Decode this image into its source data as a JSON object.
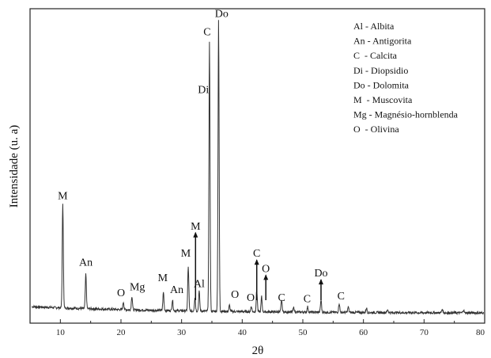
{
  "chart_data": {
    "type": "line",
    "title": "",
    "xlabel": "2θ",
    "ylabel": "Intensidade (u. a)",
    "xlim": [
      5,
      80
    ],
    "xticks": [
      10,
      20,
      30,
      40,
      50,
      60,
      70,
      80
    ],
    "y_ticks_shown": false,
    "grid": false,
    "legend": "top-right",
    "legend_entries": [
      "Al - Albita",
      "An - Antigorita",
      "C  - Calcita",
      "Di - Diopsidio",
      "Do - Dolomita",
      "M  - Muscovita",
      "Mg - Magnésio-hornblenda",
      "O  - Olivina"
    ],
    "peaks": [
      {
        "x": 10.4,
        "y": 0.34
      },
      {
        "x": 14.2,
        "y": 0.115
      },
      {
        "x": 20.4,
        "y": 0.025
      },
      {
        "x": 21.8,
        "y": 0.045
      },
      {
        "x": 27.0,
        "y": 0.06
      },
      {
        "x": 28.5,
        "y": 0.035
      },
      {
        "x": 31.1,
        "y": 0.145
      },
      {
        "x": 32.2,
        "y": 0.045
      },
      {
        "x": 32.9,
        "y": 0.065
      },
      {
        "x": 34.6,
        "y": 0.89
      },
      {
        "x": 36.1,
        "y": 0.96
      },
      {
        "x": 37.9,
        "y": 0.02
      },
      {
        "x": 41.5,
        "y": 0.018
      },
      {
        "x": 42.4,
        "y": 0.07
      },
      {
        "x": 43.2,
        "y": 0.05
      },
      {
        "x": 46.5,
        "y": 0.04
      },
      {
        "x": 48.5,
        "y": 0.015
      },
      {
        "x": 50.8,
        "y": 0.018
      },
      {
        "x": 53.0,
        "y": 0.04
      },
      {
        "x": 56.0,
        "y": 0.03
      },
      {
        "x": 57.5,
        "y": 0.018
      },
      {
        "x": 60.5,
        "y": 0.015
      },
      {
        "x": 64.0,
        "y": 0.01
      },
      {
        "x": 73.0,
        "y": 0.012
      },
      {
        "x": 76.5,
        "y": 0.01
      }
    ],
    "annotations": [
      {
        "text": "M",
        "x": 10.4,
        "y": 0.38
      },
      {
        "text": "An",
        "x": 14.2,
        "y": 0.16
      },
      {
        "text": "O",
        "x": 20.0,
        "y": 0.06
      },
      {
        "text": "Mg",
        "x": 22.7,
        "y": 0.08
      },
      {
        "text": "M",
        "x": 26.9,
        "y": 0.11
      },
      {
        "text": "An",
        "x": 29.2,
        "y": 0.07
      },
      {
        "text": "M",
        "x": 30.7,
        "y": 0.19
      },
      {
        "text": "M",
        "x": 32.3,
        "y": 0.28,
        "arrow": true
      },
      {
        "text": "Al",
        "x": 32.9,
        "y": 0.09
      },
      {
        "text": "Di",
        "x": 33.6,
        "y": 0.73
      },
      {
        "text": "C",
        "x": 34.2,
        "y": 0.92
      },
      {
        "text": "Do",
        "x": 36.6,
        "y": 0.98
      },
      {
        "text": "O",
        "x": 38.8,
        "y": 0.055
      },
      {
        "text": "O",
        "x": 41.4,
        "y": 0.045
      },
      {
        "text": "C",
        "x": 42.4,
        "y": 0.19,
        "arrow": true
      },
      {
        "text": "O",
        "x": 43.9,
        "y": 0.14,
        "arrow": true
      },
      {
        "text": "C",
        "x": 46.5,
        "y": 0.045
      },
      {
        "text": "C",
        "x": 50.7,
        "y": 0.04
      },
      {
        "text": "Do",
        "x": 53.0,
        "y": 0.125,
        "arrow": true
      },
      {
        "text": "C",
        "x": 56.3,
        "y": 0.05
      }
    ]
  }
}
